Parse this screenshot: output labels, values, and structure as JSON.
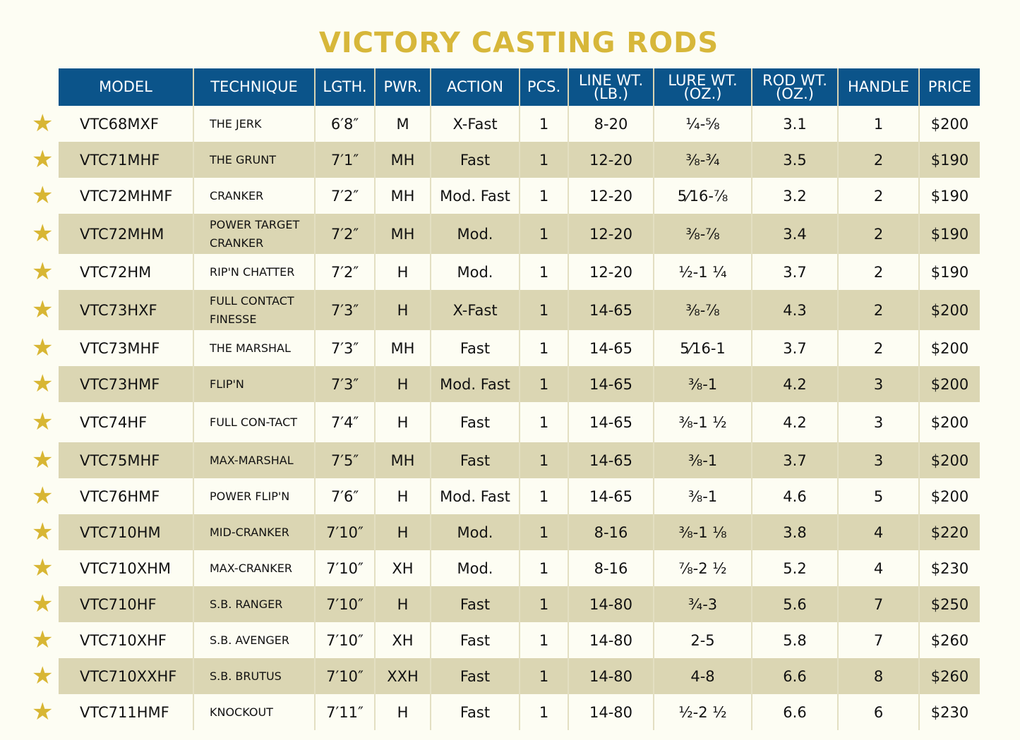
{
  "title": "VICTORY CASTING RODS",
  "colors": {
    "header_bg": "#0b548a",
    "title": "#d7b73a",
    "star": "#d8b634",
    "alt_row": "#dbd6b3"
  },
  "columns": [
    "MODEL",
    "TECHNIQUE",
    "LGTH.",
    "PWR.",
    "ACTION",
    "PCS.",
    "LINE WT. (LB.)",
    "LURE WT. (OZ.)",
    "ROD WT. (OZ.)",
    "HANDLE",
    "PRICE"
  ],
  "rows": [
    [
      "VTC68MXF",
      "THE JERK",
      "6′8″",
      "M",
      "X-Fast",
      "1",
      "8-20",
      "¼-⅝",
      "3.1",
      "1",
      "$200"
    ],
    [
      "VTC71MHF",
      "THE GRUNT",
      "7′1″",
      "MH",
      "Fast",
      "1",
      "12-20",
      "⅜-¾",
      "3.5",
      "2",
      "$190"
    ],
    [
      "VTC72MHMF",
      "CRANKER",
      "7′2″",
      "MH",
      "Mod. Fast",
      "1",
      "12-20",
      "5⁄16-⅞",
      "3.2",
      "2",
      "$190"
    ],
    [
      "VTC72MHM",
      "POWER TARGET CRANKER",
      "7′2″",
      "MH",
      "Mod.",
      "1",
      "12-20",
      "⅜-⅞",
      "3.4",
      "2",
      "$190"
    ],
    [
      "VTC72HM",
      "RIP'N CHATTER",
      "7′2″",
      "H",
      "Mod.",
      "1",
      "12-20",
      "½-1 ¼",
      "3.7",
      "2",
      "$190"
    ],
    [
      "VTC73HXF",
      "FULL CONTACT FINESSE",
      "7′3″",
      "H",
      "X-Fast",
      "1",
      "14-65",
      "⅜-⅞",
      "4.3",
      "2",
      "$200"
    ],
    [
      "VTC73MHF",
      "THE MARSHAL",
      "7′3″",
      "MH",
      "Fast",
      "1",
      "14-65",
      "5⁄16-1",
      "3.7",
      "2",
      "$200"
    ],
    [
      "VTC73HMF",
      "FLIP'N",
      "7′3″",
      "H",
      "Mod. Fast",
      "1",
      "14-65",
      "⅜-1",
      "4.2",
      "3",
      "$200"
    ],
    [
      "VTC74HF",
      "FULL CON-TACT",
      "7′4″",
      "H",
      "Fast",
      "1",
      "14-65",
      "⅜-1 ½",
      "4.2",
      "3",
      "$200"
    ],
    [
      "VTC75MHF",
      "MAX-MARSHAL",
      "7′5″",
      "MH",
      "Fast",
      "1",
      "14-65",
      "⅜-1",
      "3.7",
      "3",
      "$200"
    ],
    [
      "VTC76HMF",
      "POWER FLIP'N",
      "7′6″",
      "H",
      "Mod. Fast",
      "1",
      "14-65",
      "⅜-1",
      "4.6",
      "5",
      "$200"
    ],
    [
      "VTC710HM",
      "MID-CRANKER",
      "7′10″",
      "H",
      "Mod.",
      "1",
      "8-16",
      "⅜-1 ⅛",
      "3.8",
      "4",
      "$220"
    ],
    [
      "VTC710XHM",
      "MAX-CRANKER",
      "7′10″",
      "XH",
      "Mod.",
      "1",
      "8-16",
      "⅞-2 ½",
      "5.2",
      "4",
      "$230"
    ],
    [
      "VTC710HF",
      "S.B. RANGER",
      "7′10″",
      "H",
      "Fast",
      "1",
      "14-80",
      "¾-3",
      "5.6",
      "7",
      "$250"
    ],
    [
      "VTC710XHF",
      "S.B. AVENGER",
      "7′10″",
      "XH",
      "Fast",
      "1",
      "14-80",
      "2-5",
      "5.8",
      "7",
      "$260"
    ],
    [
      "VTC710XXHF",
      "S.B. BRUTUS",
      "7′10″",
      "XXH",
      "Fast",
      "1",
      "14-80",
      "4-8",
      "6.6",
      "8",
      "$260"
    ],
    [
      "VTC711HMF",
      "KNOCKOUT",
      "7′11″",
      "H",
      "Fast",
      "1",
      "14-80",
      "½-2 ½",
      "6.6",
      "6",
      "$230"
    ]
  ],
  "row_icon": "star-icon"
}
